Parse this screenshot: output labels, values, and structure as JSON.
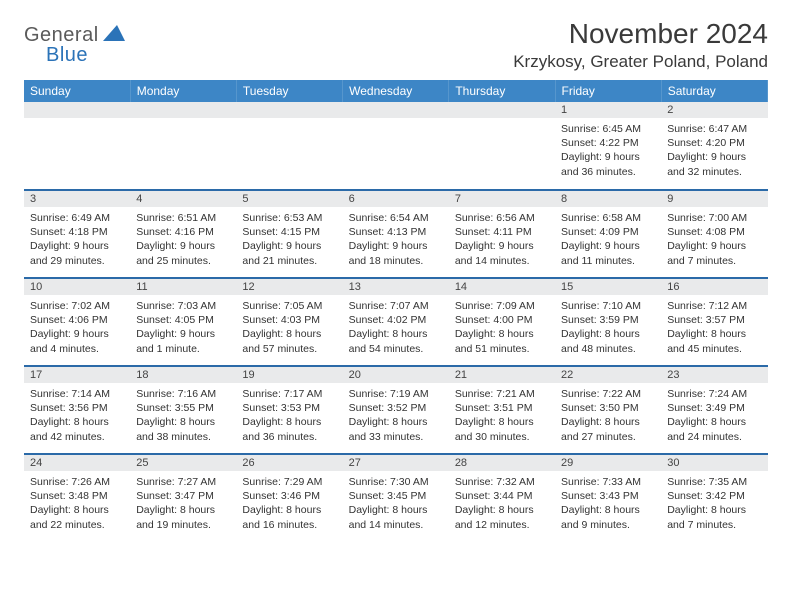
{
  "brand": {
    "name1": "General",
    "name2": "Blue"
  },
  "title": "November 2024",
  "location": "Krzykosy, Greater Poland, Poland",
  "colors": {
    "header_bg": "#3d86c6",
    "header_text": "#ffffff",
    "row_divider": "#2b6aa8",
    "daynum_bg": "#e9eaeb",
    "text": "#333333"
  },
  "weekdays": [
    "Sunday",
    "Monday",
    "Tuesday",
    "Wednesday",
    "Thursday",
    "Friday",
    "Saturday"
  ],
  "weeks": [
    [
      {
        "n": "",
        "sr": "",
        "ss": "",
        "dl": ""
      },
      {
        "n": "",
        "sr": "",
        "ss": "",
        "dl": ""
      },
      {
        "n": "",
        "sr": "",
        "ss": "",
        "dl": ""
      },
      {
        "n": "",
        "sr": "",
        "ss": "",
        "dl": ""
      },
      {
        "n": "",
        "sr": "",
        "ss": "",
        "dl": ""
      },
      {
        "n": "1",
        "sr": "Sunrise: 6:45 AM",
        "ss": "Sunset: 4:22 PM",
        "dl": "Daylight: 9 hours and 36 minutes."
      },
      {
        "n": "2",
        "sr": "Sunrise: 6:47 AM",
        "ss": "Sunset: 4:20 PM",
        "dl": "Daylight: 9 hours and 32 minutes."
      }
    ],
    [
      {
        "n": "3",
        "sr": "Sunrise: 6:49 AM",
        "ss": "Sunset: 4:18 PM",
        "dl": "Daylight: 9 hours and 29 minutes."
      },
      {
        "n": "4",
        "sr": "Sunrise: 6:51 AM",
        "ss": "Sunset: 4:16 PM",
        "dl": "Daylight: 9 hours and 25 minutes."
      },
      {
        "n": "5",
        "sr": "Sunrise: 6:53 AM",
        "ss": "Sunset: 4:15 PM",
        "dl": "Daylight: 9 hours and 21 minutes."
      },
      {
        "n": "6",
        "sr": "Sunrise: 6:54 AM",
        "ss": "Sunset: 4:13 PM",
        "dl": "Daylight: 9 hours and 18 minutes."
      },
      {
        "n": "7",
        "sr": "Sunrise: 6:56 AM",
        "ss": "Sunset: 4:11 PM",
        "dl": "Daylight: 9 hours and 14 minutes."
      },
      {
        "n": "8",
        "sr": "Sunrise: 6:58 AM",
        "ss": "Sunset: 4:09 PM",
        "dl": "Daylight: 9 hours and 11 minutes."
      },
      {
        "n": "9",
        "sr": "Sunrise: 7:00 AM",
        "ss": "Sunset: 4:08 PM",
        "dl": "Daylight: 9 hours and 7 minutes."
      }
    ],
    [
      {
        "n": "10",
        "sr": "Sunrise: 7:02 AM",
        "ss": "Sunset: 4:06 PM",
        "dl": "Daylight: 9 hours and 4 minutes."
      },
      {
        "n": "11",
        "sr": "Sunrise: 7:03 AM",
        "ss": "Sunset: 4:05 PM",
        "dl": "Daylight: 9 hours and 1 minute."
      },
      {
        "n": "12",
        "sr": "Sunrise: 7:05 AM",
        "ss": "Sunset: 4:03 PM",
        "dl": "Daylight: 8 hours and 57 minutes."
      },
      {
        "n": "13",
        "sr": "Sunrise: 7:07 AM",
        "ss": "Sunset: 4:02 PM",
        "dl": "Daylight: 8 hours and 54 minutes."
      },
      {
        "n": "14",
        "sr": "Sunrise: 7:09 AM",
        "ss": "Sunset: 4:00 PM",
        "dl": "Daylight: 8 hours and 51 minutes."
      },
      {
        "n": "15",
        "sr": "Sunrise: 7:10 AM",
        "ss": "Sunset: 3:59 PM",
        "dl": "Daylight: 8 hours and 48 minutes."
      },
      {
        "n": "16",
        "sr": "Sunrise: 7:12 AM",
        "ss": "Sunset: 3:57 PM",
        "dl": "Daylight: 8 hours and 45 minutes."
      }
    ],
    [
      {
        "n": "17",
        "sr": "Sunrise: 7:14 AM",
        "ss": "Sunset: 3:56 PM",
        "dl": "Daylight: 8 hours and 42 minutes."
      },
      {
        "n": "18",
        "sr": "Sunrise: 7:16 AM",
        "ss": "Sunset: 3:55 PM",
        "dl": "Daylight: 8 hours and 38 minutes."
      },
      {
        "n": "19",
        "sr": "Sunrise: 7:17 AM",
        "ss": "Sunset: 3:53 PM",
        "dl": "Daylight: 8 hours and 36 minutes."
      },
      {
        "n": "20",
        "sr": "Sunrise: 7:19 AM",
        "ss": "Sunset: 3:52 PM",
        "dl": "Daylight: 8 hours and 33 minutes."
      },
      {
        "n": "21",
        "sr": "Sunrise: 7:21 AM",
        "ss": "Sunset: 3:51 PM",
        "dl": "Daylight: 8 hours and 30 minutes."
      },
      {
        "n": "22",
        "sr": "Sunrise: 7:22 AM",
        "ss": "Sunset: 3:50 PM",
        "dl": "Daylight: 8 hours and 27 minutes."
      },
      {
        "n": "23",
        "sr": "Sunrise: 7:24 AM",
        "ss": "Sunset: 3:49 PM",
        "dl": "Daylight: 8 hours and 24 minutes."
      }
    ],
    [
      {
        "n": "24",
        "sr": "Sunrise: 7:26 AM",
        "ss": "Sunset: 3:48 PM",
        "dl": "Daylight: 8 hours and 22 minutes."
      },
      {
        "n": "25",
        "sr": "Sunrise: 7:27 AM",
        "ss": "Sunset: 3:47 PM",
        "dl": "Daylight: 8 hours and 19 minutes."
      },
      {
        "n": "26",
        "sr": "Sunrise: 7:29 AM",
        "ss": "Sunset: 3:46 PM",
        "dl": "Daylight: 8 hours and 16 minutes."
      },
      {
        "n": "27",
        "sr": "Sunrise: 7:30 AM",
        "ss": "Sunset: 3:45 PM",
        "dl": "Daylight: 8 hours and 14 minutes."
      },
      {
        "n": "28",
        "sr": "Sunrise: 7:32 AM",
        "ss": "Sunset: 3:44 PM",
        "dl": "Daylight: 8 hours and 12 minutes."
      },
      {
        "n": "29",
        "sr": "Sunrise: 7:33 AM",
        "ss": "Sunset: 3:43 PM",
        "dl": "Daylight: 8 hours and 9 minutes."
      },
      {
        "n": "30",
        "sr": "Sunrise: 7:35 AM",
        "ss": "Sunset: 3:42 PM",
        "dl": "Daylight: 8 hours and 7 minutes."
      }
    ]
  ]
}
